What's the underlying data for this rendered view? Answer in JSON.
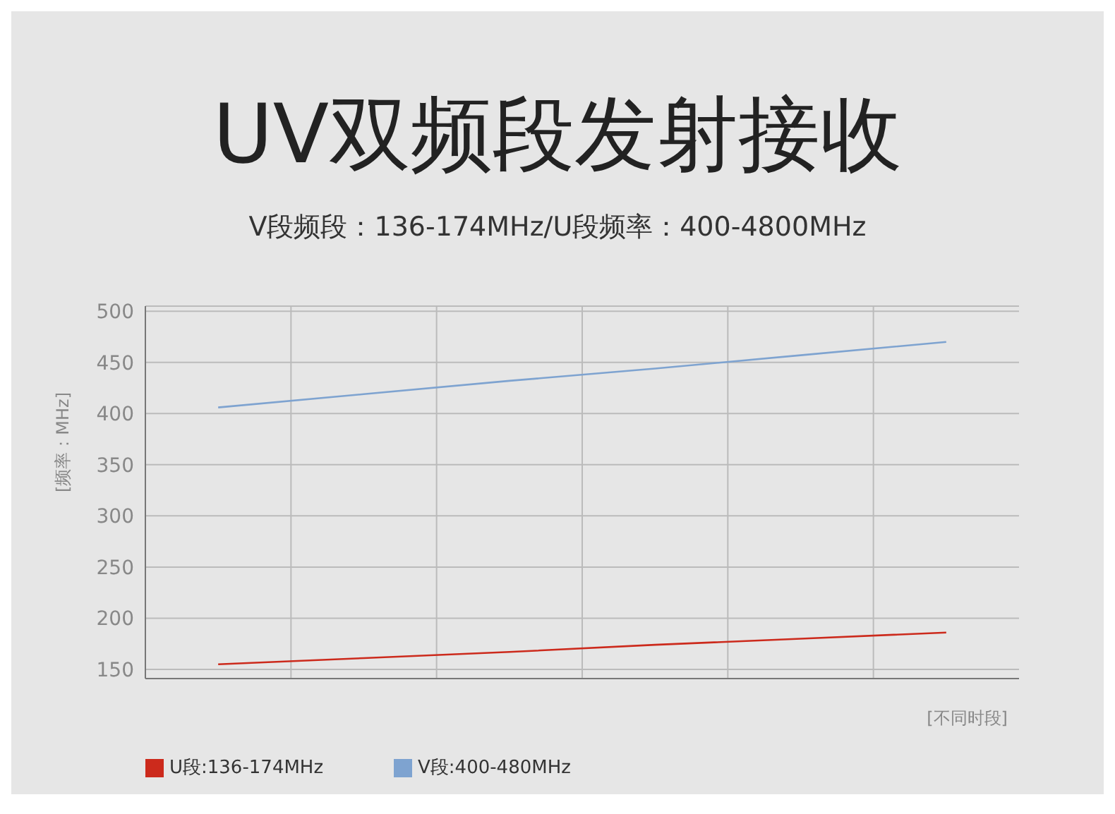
{
  "chart_data": {
    "type": "line",
    "title": "UV双频段发射接收",
    "subtitle": "V段频段：136-174MHz/U段频率：400-4800MHz",
    "xlabel": "[不同时段]",
    "ylabel": "[频率：MHz]",
    "categories": [
      null,
      null,
      null,
      null,
      null,
      null
    ],
    "ylim": [
      141,
      505
    ],
    "yticks": [
      150,
      200,
      250,
      300,
      350,
      400,
      450,
      500
    ],
    "series": [
      {
        "name": "U段:136-174MHz",
        "color": "#cc2a1c",
        "values": [
          155,
          161,
          167,
          174,
          180,
          186
        ]
      },
      {
        "name": "V段:400-480MHz",
        "color": "#7ea3d0",
        "values": [
          406,
          419,
          432,
          444,
          457,
          470
        ]
      }
    ],
    "grid": true,
    "legend": "bottom left",
    "tick_labels": "y",
    "marker": "none",
    "line_style": "solid"
  }
}
